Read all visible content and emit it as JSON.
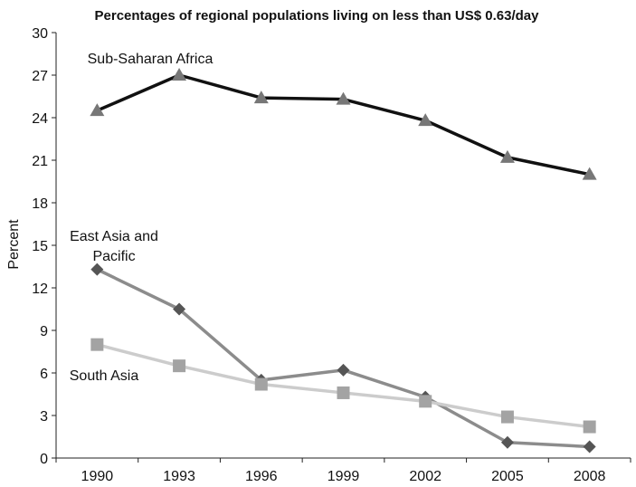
{
  "chart_data": {
    "type": "line",
    "title": "Percentages of regional populations living on less than US$ 0.63/day",
    "xlabel": "",
    "ylabel": "Percent",
    "categories": [
      "1990",
      "1993",
      "1996",
      "1999",
      "2002",
      "2005",
      "2008"
    ],
    "ylim": [
      0,
      30
    ],
    "yticks": [
      "0",
      "3",
      "6",
      "9",
      "12",
      "15",
      "18",
      "21",
      "24",
      "27",
      "30"
    ],
    "grid": false,
    "legend": "none",
    "series": [
      {
        "name": "Sub-Saharan Africa",
        "label_lines": [
          "Sub-Saharan Africa"
        ],
        "values": [
          24.5,
          27.0,
          25.4,
          25.3,
          23.8,
          21.2,
          20.0
        ],
        "line_color": "#111111",
        "marker": "triangle",
        "marker_color": "#777777"
      },
      {
        "name": "East Asia and Pacific",
        "label_lines": [
          "East Asia and",
          "Pacific"
        ],
        "values": [
          13.3,
          10.5,
          5.5,
          6.2,
          4.3,
          1.1,
          0.8
        ],
        "line_color": "#8c8c8c",
        "marker": "diamond",
        "marker_color": "#555555"
      },
      {
        "name": "South Asia",
        "label_lines": [
          "South Asia"
        ],
        "values": [
          8.0,
          6.5,
          5.2,
          4.6,
          4.0,
          2.9,
          2.2
        ],
        "line_color": "#cccccc",
        "marker": "square",
        "marker_color": "#a3a3a3"
      }
    ]
  }
}
